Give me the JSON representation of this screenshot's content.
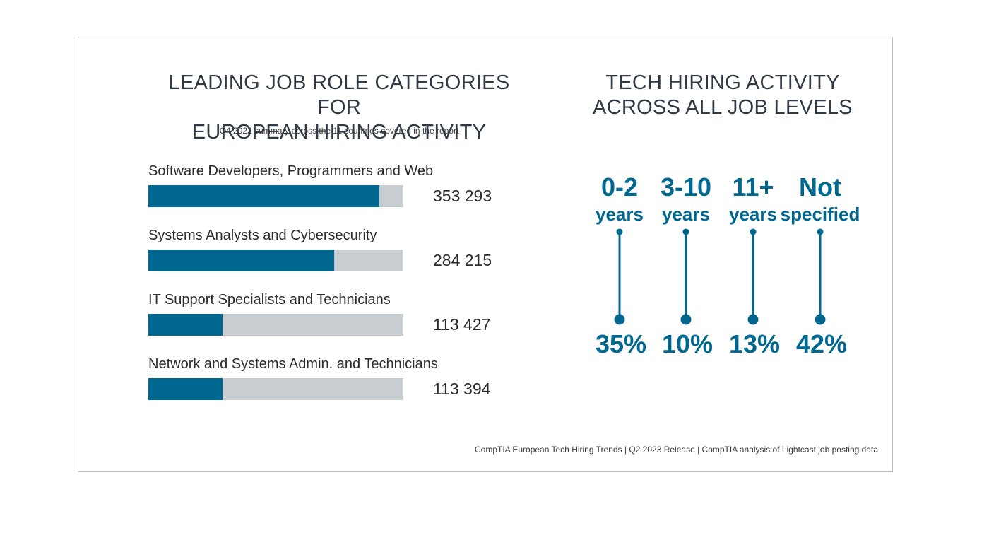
{
  "colors": {
    "accent": "#006890",
    "track": "#c8cdd1",
    "text": "#2b2b2b"
  },
  "left": {
    "title_line1": "LEADING JOB ROLE CATEGORIES FOR",
    "title_line2": "EUROPEAN HIRING ACTIVITY",
    "subtitle": "Q4 2022 summary across the 11 countries covered in the report"
  },
  "right": {
    "title_line1": "TECH HIRING ACTIVITY",
    "title_line2": "ACROSS ALL JOB LEVELS"
  },
  "footer": "CompTIA European Tech Hiring Trends | Q2 2023 Release | CompTIA analysis of Lightcast job posting data",
  "chart_data": [
    {
      "type": "bar",
      "orientation": "horizontal",
      "title": "LEADING JOB ROLE CATEGORIES FOR EUROPEAN HIRING ACTIVITY",
      "subtitle": "Q4 2022 summary across the 11 countries covered in the report",
      "categories": [
        "Software Developers, Programmers and Web",
        "Systems Analysts and Cybersecurity",
        "IT Support Specialists and Technicians",
        "Network and Systems Admin. and Technicians"
      ],
      "values": [
        353293,
        284215,
        113427,
        113394
      ],
      "value_labels": [
        "353 293",
        "284 215",
        "113 427",
        "113 394"
      ],
      "xlim": [
        0,
        390000
      ]
    },
    {
      "type": "table",
      "title": "TECH HIRING ACTIVITY ACROSS ALL JOB LEVELS",
      "levels": [
        {
          "top": "0-2",
          "bottom": "years",
          "value_label": "35%",
          "value": 35
        },
        {
          "top": "3-10",
          "bottom": "years",
          "value_label": "10%",
          "value": 10
        },
        {
          "top": "11+",
          "bottom": "years",
          "value_label": "13%",
          "value": 13
        },
        {
          "top": "Not",
          "bottom": "specified",
          "value_label": "42%",
          "value": 42
        }
      ]
    }
  ]
}
